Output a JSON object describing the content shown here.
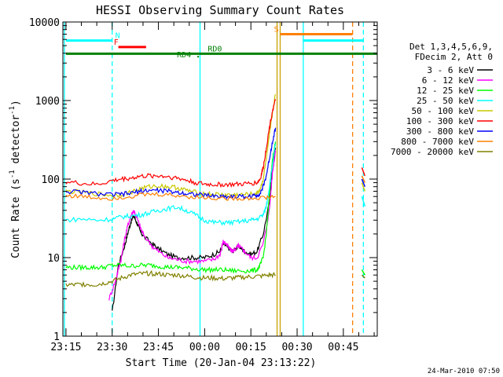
{
  "chart_data": {
    "type": "line",
    "title": "HESSI Observing Summary Count Rates",
    "xlabel": "Start Time (20-Jan-04 23:13:22)",
    "ylabel_main": "Count Rate (s",
    "ylabel_sup1": "-1",
    "ylabel_mid": " detector",
    "ylabel_sup2": "-1",
    "ylabel_end": ")",
    "y_scale": "log",
    "ylim": [
      1,
      10000
    ],
    "xlim_minutes": [
      -1,
      101
    ],
    "x_ticks": [
      {
        "label": "23:15",
        "minutes": 0
      },
      {
        "label": "23:30",
        "minutes": 15
      },
      {
        "label": "23:45",
        "minutes": 30
      },
      {
        "label": "00:00",
        "minutes": 45
      },
      {
        "label": "00:15",
        "minutes": 60
      },
      {
        "label": "00:30",
        "minutes": 75
      },
      {
        "label": "00:45",
        "minutes": 90
      }
    ],
    "y_ticks": [
      {
        "label": "1",
        "value": 1
      },
      {
        "label": "10",
        "value": 10
      },
      {
        "label": "100",
        "value": 100
      },
      {
        "label": "1000",
        "value": 1000
      },
      {
        "label": "10000",
        "value": 10000
      }
    ],
    "legend_header": [
      "Det 1,3,4,5,6,9,",
      "FDecim 2, Att 0"
    ],
    "legend_placement": "right",
    "series": [
      {
        "name": "3 - 6 keV",
        "color": "#000000",
        "x": [
          15,
          17,
          19,
          20,
          21,
          22,
          23,
          24,
          25,
          28,
          30,
          33,
          36,
          39,
          42,
          45,
          48,
          50,
          51,
          52,
          53,
          54,
          55,
          56,
          57,
          58,
          60,
          62,
          64,
          66,
          67,
          68
        ],
        "y": [
          2,
          8,
          14,
          20,
          28,
          34,
          28,
          22,
          19,
          15,
          13,
          11,
          10,
          10,
          10,
          10,
          11,
          12,
          15,
          14,
          13,
          12,
          13,
          14,
          13,
          12,
          11,
          12,
          20,
          50,
          150,
          250
        ]
      },
      {
        "name": "6 - 12 keV",
        "color": "#ff00ff",
        "x": [
          14,
          16,
          17,
          18,
          19,
          20,
          21,
          22,
          23,
          24,
          25,
          28,
          30,
          33,
          36,
          39,
          42,
          45,
          48,
          50,
          51,
          52,
          53,
          54,
          55,
          56,
          57,
          58,
          60,
          62,
          64,
          66,
          67,
          68
        ],
        "y": [
          3,
          5,
          7,
          10,
          17,
          25,
          34,
          40,
          32,
          25,
          20,
          14,
          12,
          10,
          9.5,
          9,
          9,
          9,
          9.5,
          11,
          16,
          15,
          13,
          12,
          13,
          14,
          13,
          12,
          10,
          10,
          15,
          40,
          120,
          230
        ]
      },
      {
        "name": "12 - 25 keV",
        "color": "#00ff00",
        "x": [
          0,
          3,
          6,
          9,
          12,
          15,
          18,
          21,
          24,
          27,
          30,
          33,
          36,
          39,
          42,
          45,
          48,
          51,
          54,
          57,
          60,
          62,
          63,
          64,
          65,
          66,
          67,
          68
        ],
        "y": [
          7.5,
          7.5,
          7.5,
          7.5,
          7.5,
          8,
          8,
          7.8,
          8,
          8,
          7.8,
          7.6,
          7.5,
          7.4,
          7.2,
          7,
          7,
          7,
          6.8,
          6.8,
          6.8,
          7,
          8,
          10,
          20,
          60,
          180,
          300
        ]
      },
      {
        "name": "25 - 50 keV",
        "color": "#00ffff",
        "x": [
          0,
          5,
          10,
          15,
          18,
          21,
          24,
          27,
          30,
          33,
          36,
          39,
          42,
          45,
          48,
          51,
          54,
          57,
          60,
          62,
          64,
          65,
          66,
          67,
          68
        ],
        "y": [
          30,
          31,
          30,
          31,
          33,
          34,
          35,
          37,
          40,
          42,
          44,
          40,
          35,
          30,
          28,
          28,
          28,
          29,
          30,
          31,
          35,
          45,
          80,
          150,
          280
        ]
      },
      {
        "name": "50 - 100 keV",
        "color": "#c8c800",
        "x": [
          0,
          5,
          10,
          15,
          18,
          21,
          24,
          27,
          30,
          33,
          36,
          39,
          42,
          45,
          48,
          51,
          54,
          57,
          60,
          62,
          63,
          64,
          65,
          66,
          67,
          68
        ],
        "y": [
          70,
          68,
          65,
          62,
          64,
          68,
          75,
          80,
          82,
          80,
          78,
          72,
          68,
          65,
          64,
          63,
          63,
          63,
          64,
          66,
          75,
          100,
          180,
          350,
          700,
          1200
        ]
      },
      {
        "name": "100 - 300 keV",
        "color": "#ff0000",
        "x": [
          0,
          5,
          10,
          15,
          18,
          21,
          24,
          27,
          30,
          33,
          36,
          39,
          42,
          45,
          48,
          51,
          54,
          57,
          60,
          62,
          63,
          64,
          65,
          66,
          67,
          68
        ],
        "y": [
          92,
          88,
          85,
          95,
          100,
          103,
          108,
          110,
          110,
          108,
          103,
          97,
          90,
          86,
          85,
          85,
          85,
          86,
          88,
          90,
          100,
          140,
          250,
          450,
          750,
          1000
        ]
      },
      {
        "name": "300 - 800 keV",
        "color": "#0000ff",
        "x": [
          0,
          5,
          10,
          15,
          18,
          21,
          24,
          27,
          30,
          33,
          36,
          39,
          42,
          45,
          48,
          51,
          54,
          57,
          60,
          62,
          63,
          64,
          65,
          66,
          67,
          68
        ],
        "y": [
          70,
          68,
          65,
          63,
          64,
          66,
          70,
          72,
          72,
          70,
          68,
          66,
          64,
          62,
          61,
          60,
          60,
          60,
          60,
          62,
          66,
          80,
          110,
          180,
          300,
          450
        ]
      },
      {
        "name": "800 - 7000 keV",
        "color": "#ff8000",
        "x": [
          0,
          5,
          10,
          15,
          20,
          25,
          30,
          35,
          40,
          45,
          50,
          55,
          60,
          65,
          68
        ],
        "y": [
          62,
          60,
          58,
          57,
          60,
          63,
          64,
          62,
          60,
          58,
          57,
          57,
          57,
          58,
          60
        ]
      },
      {
        "name": "7000 - 20000 keV",
        "color": "#808000",
        "x": [
          0,
          3,
          6,
          9,
          12,
          15,
          18,
          21,
          24,
          27,
          30,
          33,
          36,
          39,
          42,
          45,
          48,
          51,
          54,
          57,
          60,
          63,
          66,
          68
        ],
        "y": [
          4.5,
          4.5,
          4.6,
          4.5,
          4.7,
          5,
          5.5,
          6,
          6.2,
          6.3,
          6.2,
          6,
          6,
          5.8,
          5.6,
          5.5,
          5.5,
          5.4,
          5.5,
          5.6,
          5.7,
          5.8,
          6,
          6
        ]
      }
    ],
    "post_gap_segments": [
      {
        "color": "#ff0000",
        "x": [
          96,
          97
        ],
        "y": [
          140,
          110
        ]
      },
      {
        "color": "#ff8000",
        "x": [
          96,
          97
        ],
        "y": [
          110,
          90
        ]
      },
      {
        "color": "#0000ff",
        "x": [
          96,
          97
        ],
        "y": [
          100,
          80
        ]
      },
      {
        "color": "#c8c800",
        "x": [
          96,
          97
        ],
        "y": [
          90,
          70
        ]
      },
      {
        "color": "#00ffff",
        "x": [
          96,
          97
        ],
        "y": [
          60,
          45
        ]
      },
      {
        "color": "#00ff00",
        "x": [
          96,
          97
        ],
        "y": [
          7,
          6
        ]
      },
      {
        "color": "#808000",
        "x": [
          96,
          97
        ],
        "y": [
          6,
          5.5
        ]
      }
    ],
    "vertical_lines": [
      {
        "minutes": -0.5,
        "color": "#00ffff",
        "dashed": false
      },
      {
        "minutes": 15,
        "color": "#00ffff",
        "dashed": true
      },
      {
        "minutes": 43.5,
        "color": "#00ffff",
        "dashed": false
      },
      {
        "minutes": 68.5,
        "color": "#c8a000",
        "dashed": false
      },
      {
        "minutes": 69.5,
        "color": "#c8a000",
        "dashed": false
      },
      {
        "minutes": 77,
        "color": "#00ffff",
        "dashed": false
      },
      {
        "minutes": 93,
        "color": "#ff8000",
        "dashed": true
      },
      {
        "minutes": 96.5,
        "color": "#00ffff",
        "dashed": true
      }
    ],
    "flag_bars": [
      {
        "label": "N",
        "color": "#00ffff",
        "segments": [
          [
            0,
            15
          ],
          [
            77,
            96.5
          ]
        ],
        "y_value": 5800,
        "label_at": 16
      },
      {
        "label": "S",
        "color": "#ff8000",
        "segments": [
          [
            69.5,
            93
          ]
        ],
        "y_value": 7000,
        "label_at": 67.5
      },
      {
        "label": "F",
        "color": "#ff0000",
        "segments": [
          [
            17,
            26
          ]
        ],
        "y_value": 4800,
        "label_at": 15.5
      },
      {
        "label": "RD0",
        "color": "#008000",
        "segments": [
          [
            0,
            101
          ]
        ],
        "y_value": 3950,
        "label_at": 46
      },
      {
        "label": "RD4",
        "color": "#008000",
        "segments": [],
        "y_value": 3300,
        "label_at": 36
      }
    ]
  },
  "footer": {
    "timestamp": "24-Mar-2010 07:50"
  }
}
